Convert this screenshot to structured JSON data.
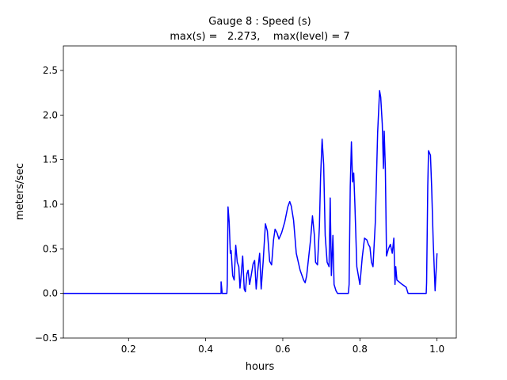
{
  "chart_data": {
    "type": "line",
    "title": [
      "Gauge 8 : Speed (s)",
      "max(s) =   2.273,    max(level) = 7"
    ],
    "xlabel": "hours",
    "ylabel": "meters/sec",
    "color": "#0000ff",
    "grid": false,
    "xlim": [
      0.031,
      1.05
    ],
    "ylim": [
      -0.5,
      2.775
    ],
    "xticks": [
      0.2,
      0.4,
      0.6,
      0.8,
      {
        "value": 1,
        "label": "1.0"
      }
    ],
    "yticks": [
      {
        "value": -0.5,
        "label": "−0.5"
      },
      {
        "value": 0,
        "label": "0.0"
      },
      0.5,
      {
        "value": 1,
        "label": "1.0"
      },
      1.5,
      {
        "value": 2,
        "label": "2.0"
      },
      2.5
    ],
    "x": [
      0.031,
      0.44,
      0.44,
      0.443,
      0.455,
      0.456,
      0.458,
      0.461,
      0.464,
      0.466,
      0.47,
      0.474,
      0.478,
      0.482,
      0.486,
      0.489,
      0.492,
      0.496,
      0.5,
      0.503,
      0.507,
      0.51,
      0.514,
      0.518,
      0.523,
      0.527,
      0.531,
      0.535,
      0.54,
      0.544,
      0.549,
      0.555,
      0.56,
      0.566,
      0.571,
      0.576,
      0.58,
      0.585,
      0.59,
      0.597,
      0.605,
      0.613,
      0.618,
      0.622,
      0.628,
      0.635,
      0.645,
      0.654,
      0.658,
      0.662,
      0.672,
      0.677,
      0.682,
      0.685,
      0.69,
      0.695,
      0.698,
      0.702,
      0.706,
      0.71,
      0.715,
      0.72,
      0.723,
      0.726,
      0.73,
      0.733,
      0.738,
      0.742,
      0.77,
      0.772,
      0.775,
      0.778,
      0.781,
      0.784,
      0.787,
      0.792,
      0.8,
      0.806,
      0.812,
      0.818,
      0.822,
      0.826,
      0.83,
      0.834,
      0.84,
      0.846,
      0.851,
      0.854,
      0.858,
      0.861,
      0.863,
      0.866,
      0.869,
      0.874,
      0.879,
      0.884,
      0.888,
      0.891,
      0.893,
      0.896,
      0.91,
      0.92,
      0.925,
      0.972,
      0.973,
      0.976,
      0.978,
      0.983,
      0.986,
      0.99,
      0.995,
      1.0
    ],
    "values": [
      0,
      0,
      0.13,
      0,
      0,
      0.1,
      0.97,
      0.8,
      0.45,
      0.48,
      0.2,
      0.15,
      0.54,
      0.35,
      0.3,
      0.06,
      0.2,
      0.42,
      0.05,
      0.02,
      0.22,
      0.26,
      0.1,
      0.2,
      0.33,
      0.37,
      0.05,
      0.25,
      0.45,
      0.05,
      0.35,
      0.78,
      0.7,
      0.36,
      0.32,
      0.6,
      0.72,
      0.68,
      0.61,
      0.68,
      0.8,
      0.97,
      1.03,
      0.98,
      0.82,
      0.45,
      0.26,
      0.15,
      0.12,
      0.2,
      0.6,
      0.87,
      0.65,
      0.35,
      0.32,
      0.75,
      1.3,
      1.73,
      1.45,
      0.65,
      0.35,
      0.3,
      1.07,
      0.2,
      0.65,
      0.1,
      0.03,
      0,
      0,
      0.1,
      1.2,
      1.7,
      1.25,
      1.35,
      1,
      0.3,
      0.1,
      0.4,
      0.62,
      0.6,
      0.55,
      0.52,
      0.35,
      0.3,
      0.8,
      1.8,
      2.273,
      2.2,
      1.9,
      1.4,
      1.82,
      1.4,
      0.42,
      0.5,
      0.55,
      0.45,
      0.62,
      0.1,
      0.3,
      0.15,
      0.1,
      0.07,
      0,
      0,
      0.12,
      1.2,
      1.6,
      1.55,
      1.2,
      0.6,
      0.03,
      0.45
    ]
  }
}
